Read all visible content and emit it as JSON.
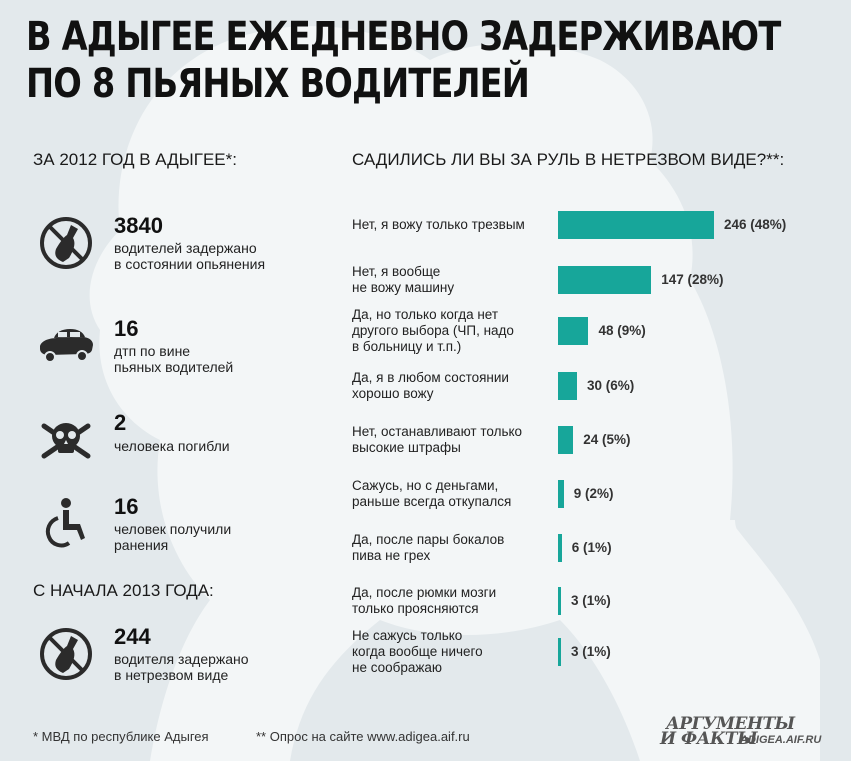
{
  "headline": {
    "line1": "В АДЫГЕЕ ЕЖЕДНЕВНО ЗАДЕРЖИВАЮТ",
    "line2": "ПО 8 ПЬЯНЫХ ВОДИТЕЛЕЙ"
  },
  "left": {
    "heading_2012": "ЗА 2012 ГОД  В АДЫГЕЕ*:",
    "heading_2013": "С НАЧАЛА 2013 ГОДА:",
    "stats_2012": [
      {
        "icon": "no-bottle-icon",
        "number": "3840",
        "desc1": "водителей задержано",
        "desc2": "в состоянии опьянения"
      },
      {
        "icon": "overturned-car-icon",
        "number": "16",
        "desc1": "дтп по вине",
        "desc2": "пьяных водителей"
      },
      {
        "icon": "skull-crossbones-icon",
        "number": "2",
        "desc1": "человека погибли",
        "desc2": ""
      },
      {
        "icon": "wheelchair-icon",
        "number": "16",
        "desc1": "человек получили",
        "desc2": "ранения"
      }
    ],
    "stats_2013": [
      {
        "icon": "no-bottle-icon",
        "number": "244",
        "desc1": "водителя задержано",
        "desc2": "в нетрезвом виде"
      }
    ]
  },
  "survey": {
    "heading": "САДИЛИСЬ ЛИ ВЫ ЗА РУЛЬ В НЕТРЕЗВОМ ВИДЕ?**:",
    "rows": [
      {
        "l1": "Нет, я вожу только трезвым",
        "l2": "",
        "l3": "",
        "value_label": "246 (48%)"
      },
      {
        "l1": "Нет, я вообще",
        "l2": "не вожу машину",
        "l3": "",
        "value_label": "147 (28%)"
      },
      {
        "l1": "Да, но только когда нет",
        "l2": "другого выбора (ЧП, надо",
        "l3": "в больницу и т.п.)",
        "value_label": "48 (9%)"
      },
      {
        "l1": "Да, я в любом состоянии",
        "l2": "хорошо вожу",
        "l3": "",
        "value_label": "30 (6%)"
      },
      {
        "l1": "Нет, останавливают только",
        "l2": "высокие штрафы",
        "l3": "",
        "value_label": "24 (5%)"
      },
      {
        "l1": "Сажусь, но с деньгами,",
        "l2": "раньше всегда откупался",
        "l3": "",
        "value_label": "9 (2%)"
      },
      {
        "l1": "Да, после пары бокалов",
        "l2": "пива не грех",
        "l3": "",
        "value_label": "6 (1%)"
      },
      {
        "l1": "Да, после рюмки мозги",
        "l2": "только проясняются",
        "l3": "",
        "value_label": "3 (1%)"
      },
      {
        "l1": "Не сажусь только",
        "l2": "когда вообще ничего",
        "l3": "не соображаю",
        "value_label": "3 (1%)"
      }
    ]
  },
  "chart_data": {
    "type": "bar",
    "orientation": "horizontal",
    "title": "САДИЛИСЬ ЛИ ВЫ ЗА РУЛЬ В НЕТРЕЗВОМ ВИДЕ?**:",
    "categories": [
      "Нет, я вожу только трезвым",
      "Нет, я вообще не вожу машину",
      "Да, но только когда нет другого выбора (ЧП, надо в больницу и т.п.)",
      "Да, я в любом состоянии хорошо вожу",
      "Нет, останавливают только высокие штрафы",
      "Сажусь, но с деньгами, раньше всегда откупался",
      "Да, после пары бокалов пива не грех",
      "Да, после рюмки мозги только проясняются",
      "Не сажусь только когда вообще ничего не соображаю"
    ],
    "values": [
      246,
      147,
      48,
      30,
      24,
      9,
      6,
      3,
      3
    ],
    "percents": [
      48,
      28,
      9,
      6,
      5,
      2,
      1,
      1,
      1
    ],
    "xlim": [
      0,
      246
    ],
    "bar_color": "#17a69a",
    "grid": false
  },
  "footnotes": {
    "mvd": "* МВД по республике Адыгея",
    "poll": "** Опрос на сайте www.adigea.aif.ru"
  },
  "logo": {
    "line1": "АРГУМЕНТЫ",
    "line2": "И ФАКТЫ",
    "site": "ADIGEA.AIF.RU"
  },
  "colors": {
    "background": "#e3e9ec",
    "silhouette": "#f3f6f7",
    "accent": "#17a69a",
    "icon": "#2b2b2b"
  }
}
